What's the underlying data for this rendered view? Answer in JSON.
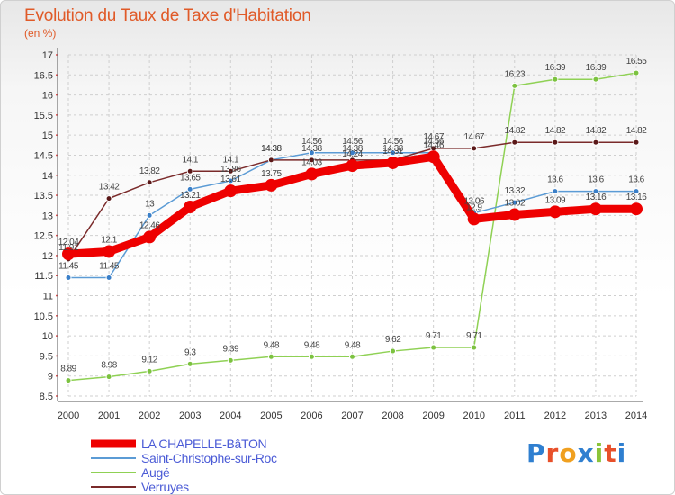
{
  "title": "Evolution du Taux de Taxe d'Habitation",
  "subtitle": "(en %)",
  "brand": {
    "text": "Proxiti",
    "letter_colors": [
      "#2f7fd0",
      "#e8502a",
      "#f0a020",
      "#2f7fd0",
      "#8ac43a",
      "#e8502a",
      "#2f7fd0"
    ]
  },
  "chart_data": {
    "type": "line",
    "x": [
      2000,
      2001,
      2002,
      2003,
      2004,
      2005,
      2006,
      2007,
      2008,
      2009,
      2010,
      2011,
      2012,
      2013,
      2014
    ],
    "ylim": [
      8.5,
      17
    ],
    "yticks": [
      "8.5",
      "9",
      "9.5",
      "10",
      "10.5",
      "11",
      "11.5",
      "12",
      "12.5",
      "13",
      "13.5",
      "14",
      "14.5",
      "15",
      "15.5",
      "16",
      "16.5",
      "17"
    ],
    "grid": true,
    "legend_position": "bottom-left",
    "series": [
      {
        "name": "LA CHAPELLE-BâTON",
        "color": "#ee0000",
        "values": [
          12.04,
          12.1,
          12.46,
          13.21,
          13.61,
          13.75,
          14.03,
          14.24,
          14.31,
          14.46,
          12.91,
          13.02,
          13.09,
          13.16,
          13.16
        ],
        "labels": [
          "12.04",
          "12.1",
          "12.46",
          "13.21",
          "13.61",
          "13.75",
          "14.03",
          "14.24",
          "14.31",
          "14.46",
          "12.9",
          "13.02",
          "13.09",
          "13.16",
          "13.16"
        ]
      },
      {
        "name": "Saint-Christophe-sur-Roc",
        "color": "#5b9bd5",
        "values": [
          11.45,
          11.45,
          13.0,
          13.65,
          13.86,
          14.38,
          14.56,
          14.56,
          14.56,
          14.56,
          13.06,
          13.32,
          13.6,
          13.6,
          13.6
        ],
        "labels": [
          "11.45",
          "11.45",
          "13",
          "13.65",
          "13.86",
          "14.38",
          "14.56",
          "14.56",
          "14.56",
          "14.56",
          "13.06",
          "13.32",
          "13.6",
          "13.6",
          "13.6"
        ]
      },
      {
        "name": "Augé",
        "color": "#8fd154",
        "values": [
          8.89,
          8.98,
          9.12,
          9.3,
          9.39,
          9.48,
          9.48,
          9.48,
          9.62,
          9.71,
          9.71,
          16.23,
          16.39,
          16.39,
          16.55
        ],
        "labels": [
          "8.89",
          "8.98",
          "9.12",
          "9.3",
          "9.39",
          "9.48",
          "9.48",
          "9.48",
          "9.62",
          "9.71",
          "9.71",
          "16.23",
          "16.39",
          "16.39",
          "16.55"
        ]
      },
      {
        "name": "Verruyes",
        "color": "#7a2a2a",
        "values": [
          11.91,
          13.42,
          13.82,
          14.1,
          14.1,
          14.38,
          14.38,
          14.38,
          14.38,
          14.67,
          14.67,
          14.82,
          14.82,
          14.82,
          14.82
        ],
        "labels": [
          "11.91",
          "13.42",
          "13.82",
          "14.1",
          "14.1",
          "14.38",
          "14.38",
          "14.38",
          "14.38",
          "14.67",
          "14.67",
          "14.82",
          "14.82",
          "14.82",
          "14.82"
        ]
      }
    ]
  }
}
